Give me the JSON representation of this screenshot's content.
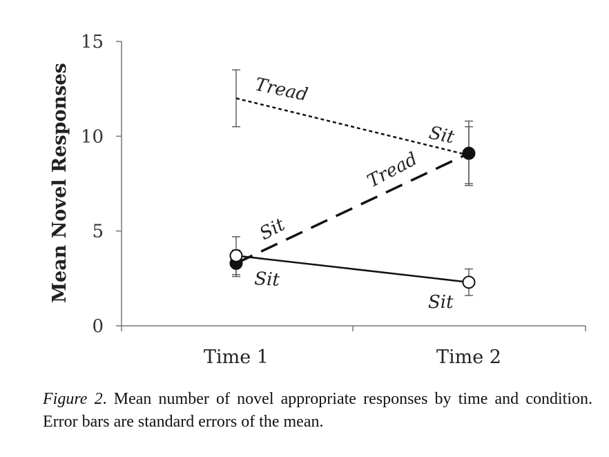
{
  "chart_data": {
    "type": "line",
    "categories": [
      "Time 1",
      "Time 2"
    ],
    "ylabel": "Mean Novel Responses",
    "xlabel": "",
    "ylim": [
      0,
      15
    ],
    "yticks": [
      "0",
      "5",
      "10",
      "15"
    ],
    "grid": false,
    "series": [
      {
        "key": "sit_tread",
        "values": [
          12,
          9
        ],
        "error": [
          1.5,
          1.5
        ],
        "style": "dotted",
        "marker": "none",
        "labels": [
          "Tread",
          "Sit"
        ]
      },
      {
        "key": "sit_sit_filled",
        "values": [
          3.3,
          9.1
        ],
        "error": [
          0.7,
          1.7
        ],
        "style": "dashed",
        "marker": "filled",
        "labels": [
          "Sit",
          "Tread"
        ]
      },
      {
        "key": "sit_sit_open",
        "values": [
          3.7,
          2.3
        ],
        "error": [
          1.0,
          0.7
        ],
        "style": "solid",
        "marker": "open",
        "labels": [
          "Sit",
          "Sit"
        ]
      }
    ],
    "color": "#111111"
  },
  "caption": {
    "lead": "Figure 2",
    "text": ".  Mean number of novel appropriate responses by time and condition. Error bars are standard errors of the mean."
  }
}
